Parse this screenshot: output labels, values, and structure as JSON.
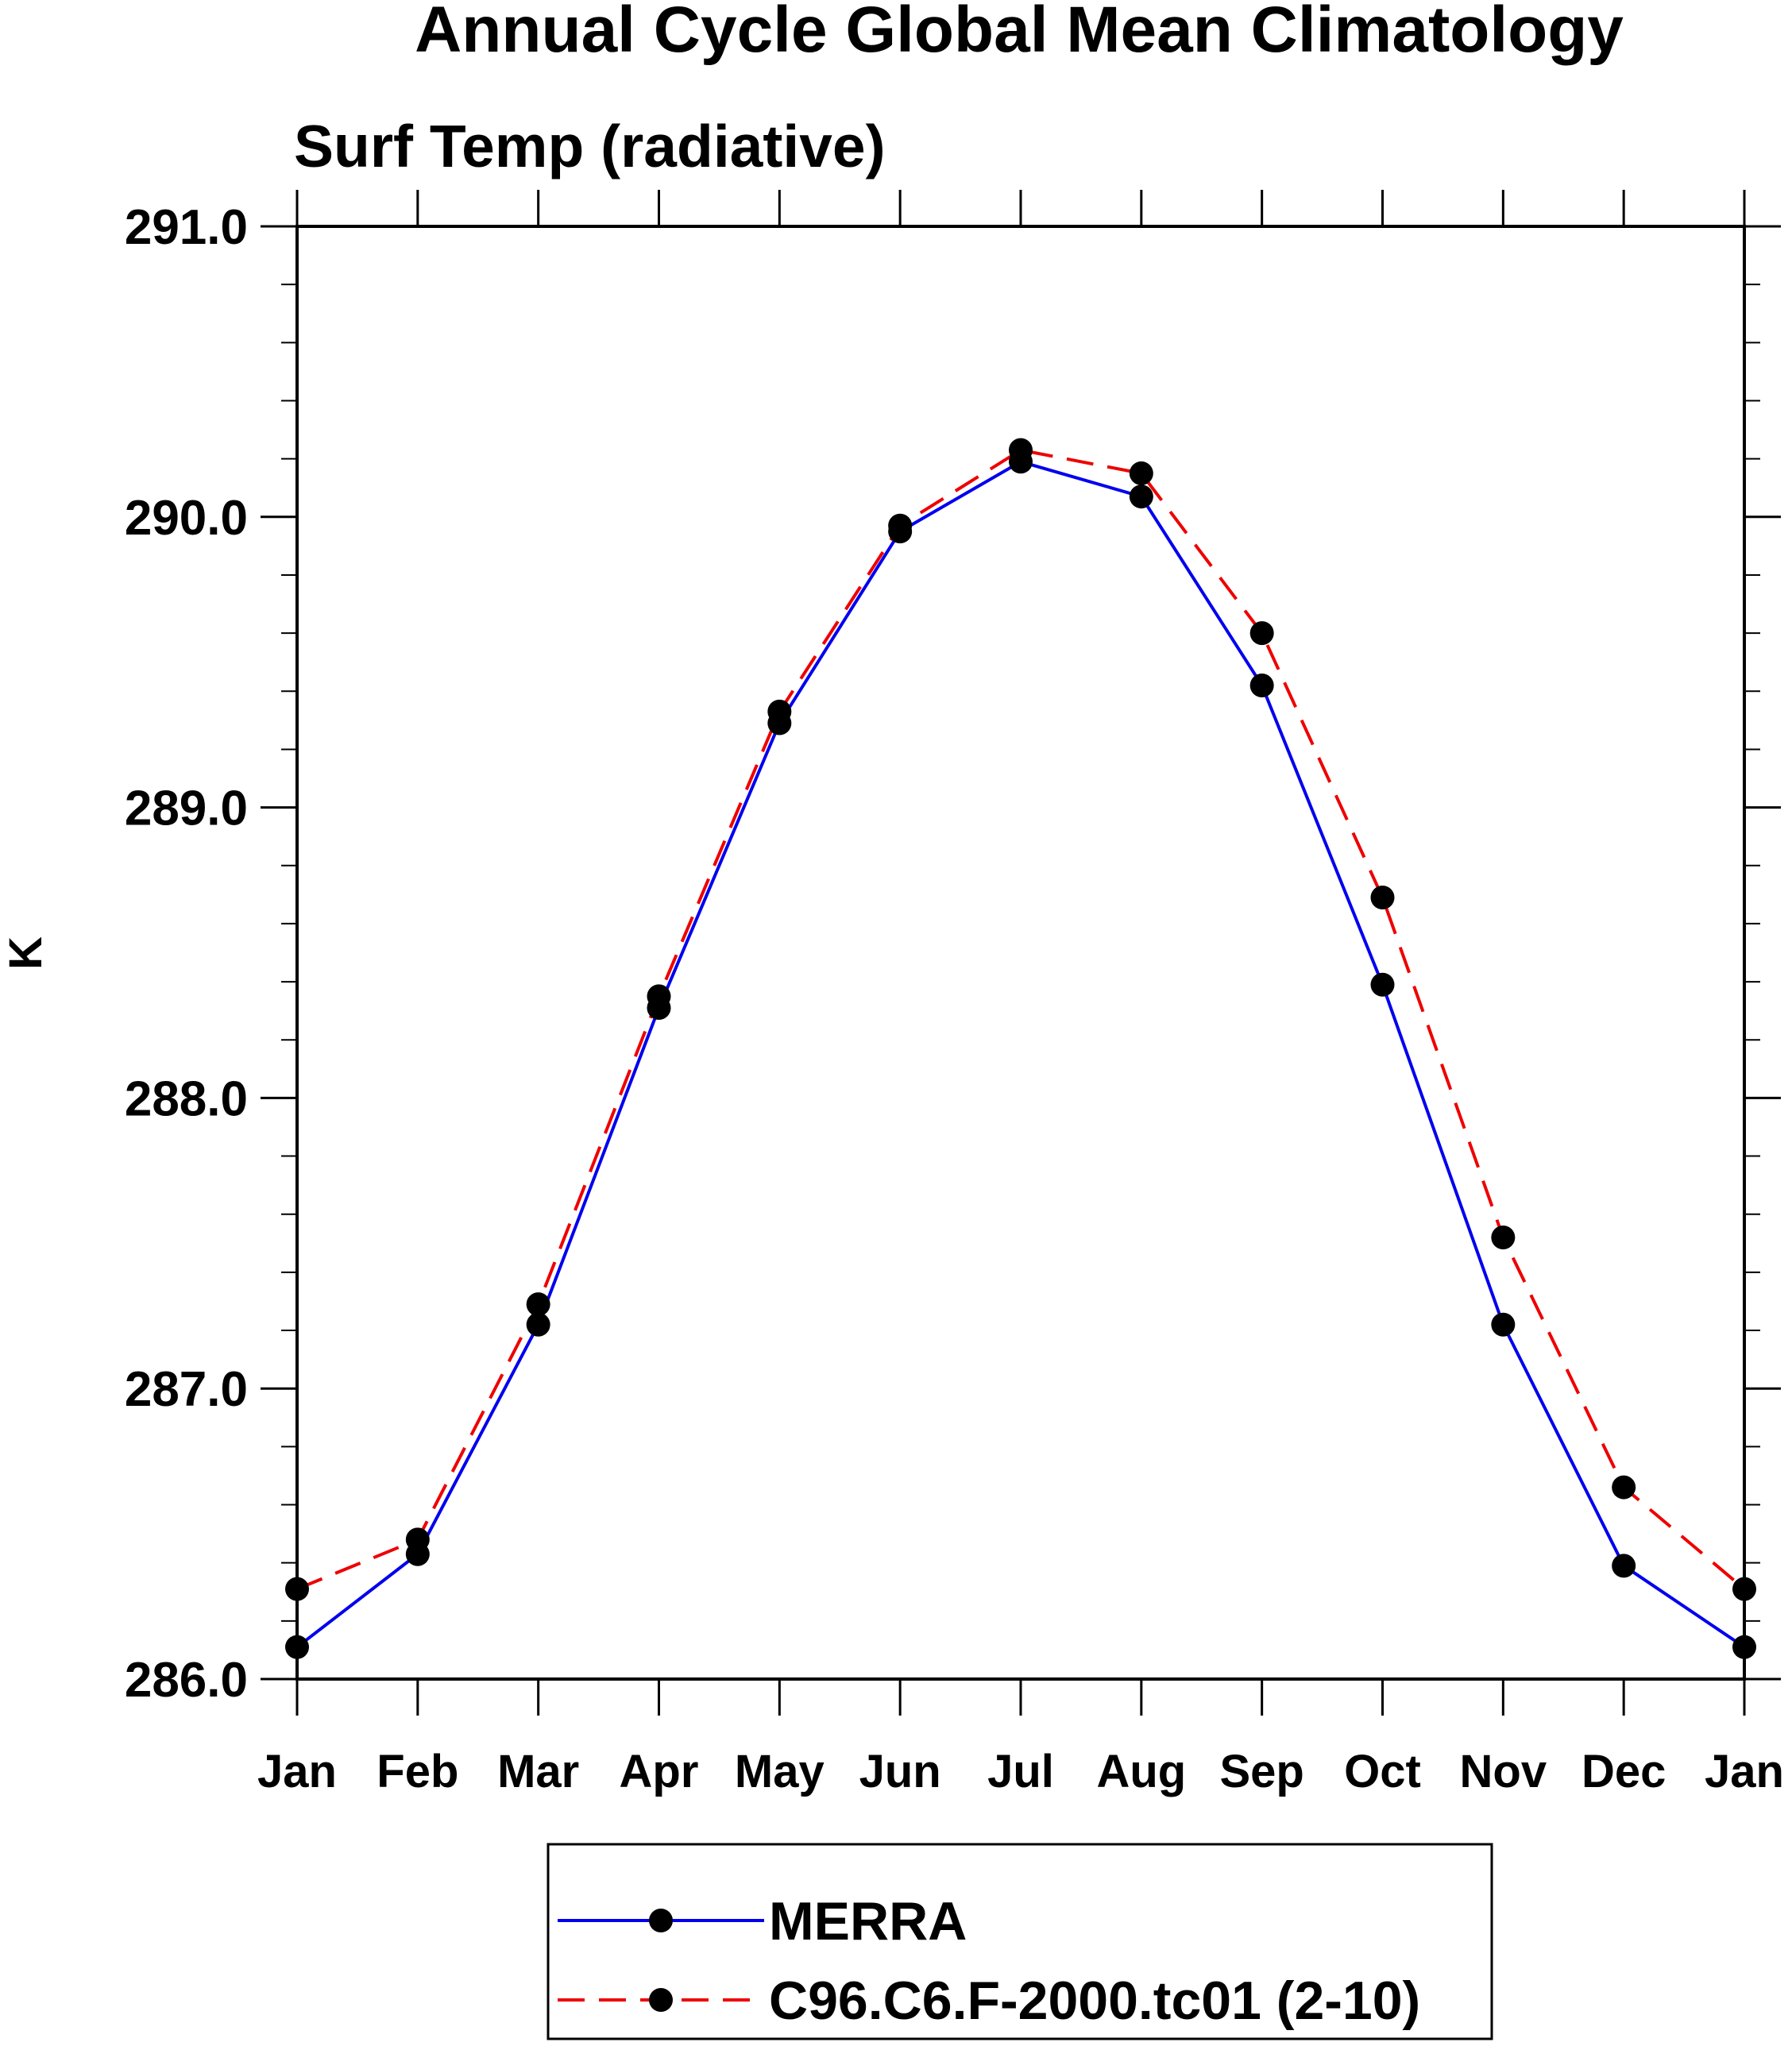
{
  "chart_data": {
    "type": "line",
    "title": "Annual Cycle Global Mean Climatology",
    "subtitle": "Surf Temp (radiative)",
    "xlabel": "",
    "ylabel": "K",
    "categories": [
      "Jan",
      "Feb",
      "Mar",
      "Apr",
      "May",
      "Jun",
      "Jul",
      "Aug",
      "Sep",
      "Oct",
      "Nov",
      "Dec",
      "Jan"
    ],
    "ylim": [
      286.0,
      291.0
    ],
    "y_ticks": [
      "286.0",
      "287.0",
      "288.0",
      "289.0",
      "290.0",
      "291.0"
    ],
    "y_minor_step": 0.2,
    "grid": false,
    "legend_position": "bottom-center",
    "series": [
      {
        "name": "MERRA",
        "color": "#0000ee",
        "line_style": "solid",
        "marker": "filled-circle",
        "values": [
          286.11,
          286.43,
          287.22,
          288.31,
          289.29,
          289.95,
          290.19,
          290.07,
          289.42,
          288.39,
          287.22,
          286.39,
          286.11
        ]
      },
      {
        "name": "C96.C6.F-2000.tc01 (2-10)",
        "color": "#ee0000",
        "line_style": "dashed",
        "marker": "filled-circle",
        "values": [
          286.31,
          286.48,
          287.29,
          288.35,
          289.33,
          289.97,
          290.23,
          290.15,
          289.6,
          288.69,
          287.52,
          286.66,
          286.31
        ]
      }
    ]
  }
}
